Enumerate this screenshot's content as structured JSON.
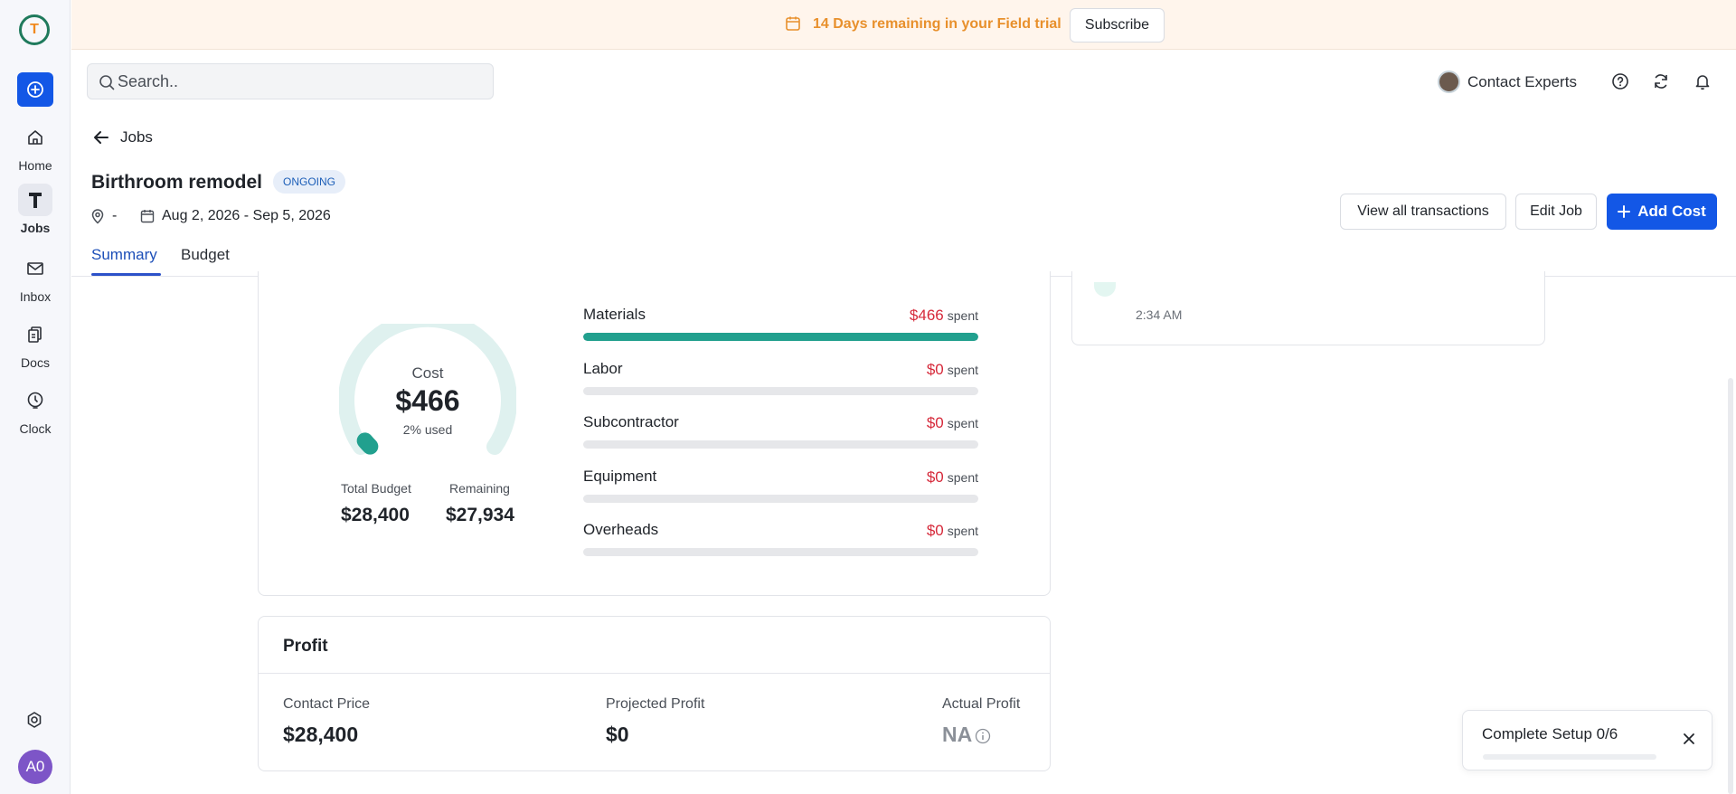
{
  "app": {
    "logo_letter": "T"
  },
  "sidebar": {
    "items": [
      {
        "label": "Home",
        "icon": "home-icon"
      },
      {
        "label": "Jobs",
        "icon": "jobs-icon",
        "active": true
      },
      {
        "label": "Inbox",
        "icon": "mail-icon"
      },
      {
        "label": "Docs",
        "icon": "docs-icon"
      },
      {
        "label": "Clock",
        "icon": "clock-icon"
      }
    ],
    "user_initials": "A0"
  },
  "banner": {
    "text": "14 Days remaining in your Field trial",
    "subscribe_label": "Subscribe"
  },
  "topbar": {
    "search_placeholder": "Search..",
    "contact_label": "Contact Experts"
  },
  "header": {
    "back_label": "Jobs",
    "title": "Birthroom remodel",
    "status": "ONGOING",
    "location": "-",
    "date_range": "Aug 2, 2026 - Sep 5, 2026",
    "view_transactions_label": "View all transactions",
    "edit_job_label": "Edit Job",
    "add_cost_label": "Add Cost"
  },
  "tabs": [
    {
      "label": "Summary",
      "active": true
    },
    {
      "label": "Budget"
    }
  ],
  "cost": {
    "label": "Cost",
    "amount": "$466",
    "used_text": "2% used",
    "used_fraction": 0.02,
    "total_budget_label": "Total Budget",
    "total_budget": "$28,400",
    "remaining_label": "Remaining",
    "remaining": "$27,934",
    "spent_word": "spent",
    "categories": [
      {
        "name": "Materials",
        "spent": "$466",
        "fraction": 1.0
      },
      {
        "name": "Labor",
        "spent": "$0",
        "fraction": 0
      },
      {
        "name": "Subcontractor",
        "spent": "$0",
        "fraction": 0
      },
      {
        "name": "Equipment",
        "spent": "$0",
        "fraction": 0
      },
      {
        "name": "Overheads",
        "spent": "$0",
        "fraction": 0
      }
    ]
  },
  "activity": {
    "time": "2:34 AM"
  },
  "profit": {
    "title": "Profit",
    "contract_price_label": "Contact Price",
    "contract_price": "$28,400",
    "projected_label": "Projected Profit",
    "projected": "$0",
    "actual_label": "Actual Profit",
    "actual": "NA"
  },
  "setup": {
    "title": "Complete Setup 0/6",
    "progress": 0
  },
  "colors": {
    "primary": "#1357e6",
    "accent_teal": "#21a08e",
    "danger": "#d6293a",
    "banner_text": "#e8902c"
  }
}
